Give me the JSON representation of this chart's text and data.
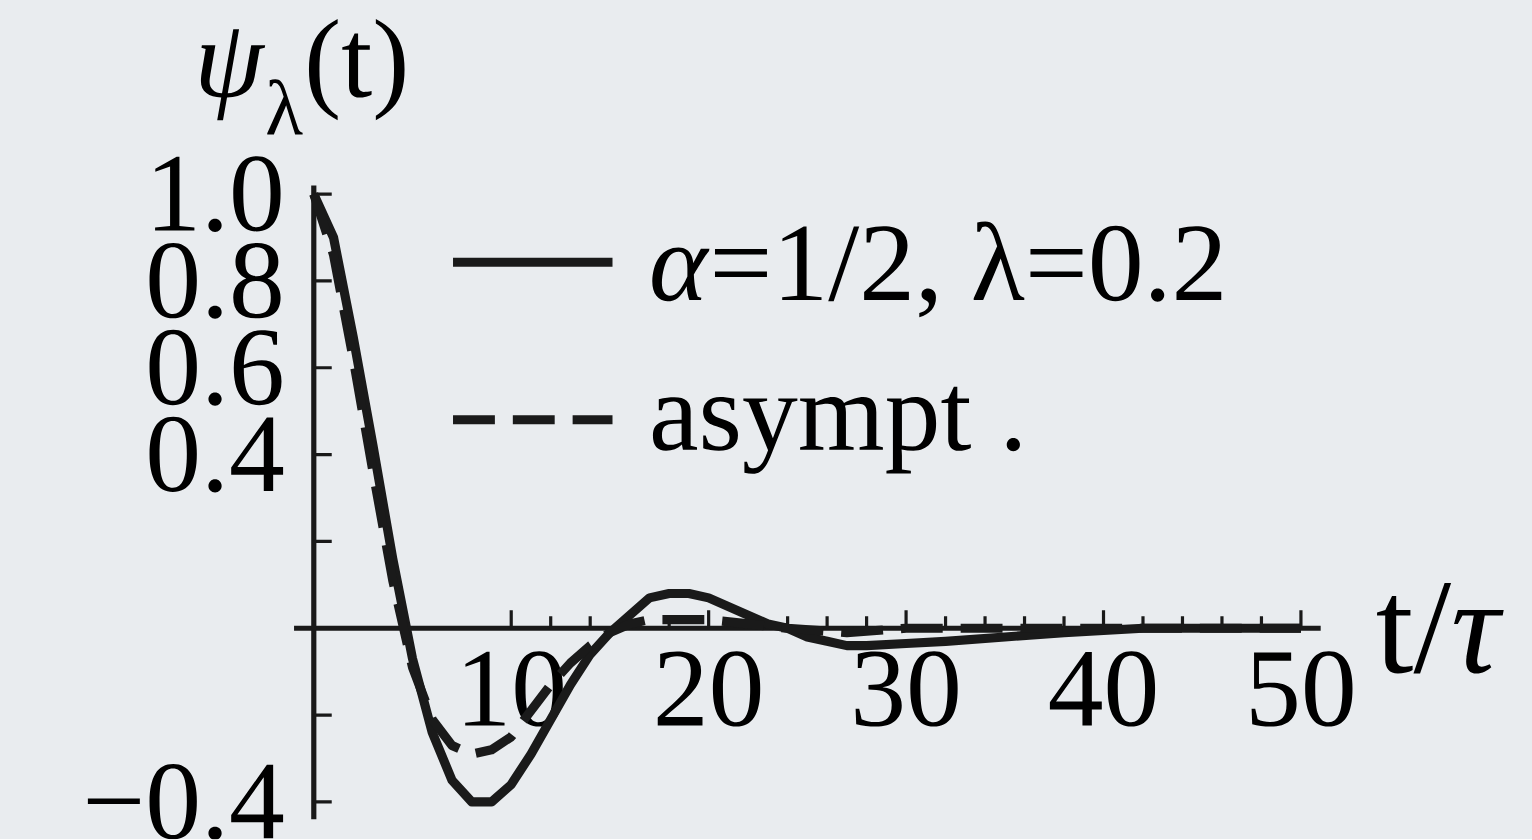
{
  "chart_data": {
    "type": "line",
    "xlabel": "t/*τ*",
    "ylabel": "*ψ*$_{λ}$(t)",
    "series": [
      {
        "name": "*α*=1/2, λ=0.2",
        "color": "#1a1a1a",
        "line_style": "solid",
        "x": [
          0,
          1,
          2,
          3,
          4,
          5,
          6,
          7,
          8,
          9,
          10,
          11,
          12,
          13,
          14,
          15,
          16,
          17,
          18,
          19,
          20,
          21,
          22,
          23,
          24,
          25,
          26,
          27,
          28,
          30,
          32,
          35,
          38,
          42,
          50
        ],
        "values": [
          1.0,
          0.9,
          0.67,
          0.42,
          0.16,
          -0.07,
          -0.24,
          -0.35,
          -0.4,
          -0.4,
          -0.36,
          -0.29,
          -0.21,
          -0.13,
          -0.06,
          -0.01,
          0.03,
          0.07,
          0.08,
          0.08,
          0.07,
          0.05,
          0.03,
          0.01,
          0.0,
          -0.02,
          -0.03,
          -0.04,
          -0.04,
          -0.035,
          -0.03,
          -0.02,
          -0.01,
          0.0,
          0.0
        ]
      },
      {
        "name": "asympt .",
        "color": "#1a1a1a",
        "line_style": "dashed",
        "x": [
          0,
          1,
          2,
          3,
          4,
          5,
          6,
          7,
          8,
          9,
          10,
          11,
          12,
          13,
          14,
          15,
          16,
          17,
          18,
          20,
          22,
          24,
          27,
          30,
          50
        ],
        "values": [
          1.0,
          0.86,
          0.62,
          0.36,
          0.11,
          -0.09,
          -0.21,
          -0.27,
          -0.29,
          -0.28,
          -0.25,
          -0.19,
          -0.13,
          -0.08,
          -0.04,
          -0.01,
          0.01,
          0.02,
          0.02,
          0.02,
          0.01,
          0.0,
          -0.01,
          0.0,
          0.0
        ]
      }
    ],
    "xlim": [
      -1,
      51
    ],
    "ylim": [
      -0.44,
      1.02
    ],
    "xticks": [
      10,
      20,
      30,
      40,
      50
    ],
    "yticks": [
      {
        "value": 1.0,
        "label": "1.0"
      },
      0.8,
      0.6,
      0.4,
      {
        "value": 0.2,
        "label": null
      },
      {
        "value": -0.2,
        "label": null
      },
      {
        "value": -0.4,
        "label": "−0.4"
      }
    ],
    "legend": "top"
  }
}
